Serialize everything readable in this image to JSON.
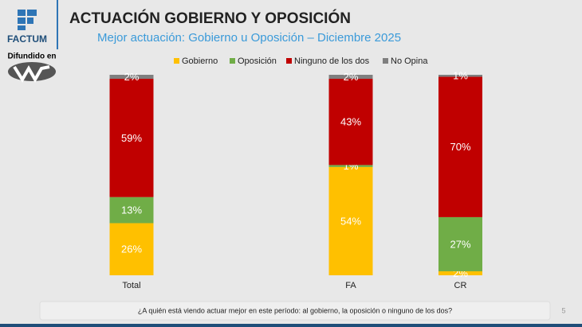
{
  "header": {
    "logo": "FACTUM",
    "broadcast": "Difundido en"
  },
  "chart_data": {
    "type": "stacked-bar",
    "title": "ACTUACIÓN GOBIERNO Y OPOSICIÓN",
    "subtitle": "Mejor actuación: Gobierno u Oposición – Diciembre 2025",
    "categories": [
      "Total",
      null,
      "FA",
      "CR"
    ],
    "series": [
      {
        "name": "Gobierno",
        "color": "#ffc000",
        "values": [
          26,
          null,
          54,
          2
        ],
        "value_labels": [
          "26%",
          null,
          "54%",
          "2%"
        ]
      },
      {
        "name": "Oposición",
        "color": "#70ad47",
        "values": [
          13,
          null,
          1,
          27
        ],
        "value_labels": [
          "13%",
          null,
          "1%",
          "27%"
        ]
      },
      {
        "name": "Ninguno de los dos",
        "color": "#c00000",
        "values": [
          59,
          null,
          43,
          70
        ],
        "value_labels": [
          "59%",
          null,
          "43%",
          "70%"
        ]
      },
      {
        "name": "No Opina",
        "color": "#7f7f7f",
        "values": [
          2,
          null,
          2,
          1
        ],
        "value_labels": [
          "2%",
          null,
          "2%",
          "1%"
        ]
      }
    ],
    "ylim": [
      0,
      100
    ],
    "legend": "top"
  },
  "footer": {
    "question": "¿A quién está viendo actuar mejor en este período: al gobierno, la oposición o ninguno de los dos?",
    "page": "5"
  }
}
